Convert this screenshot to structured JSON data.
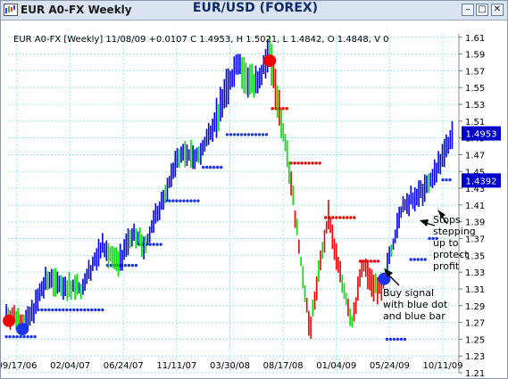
{
  "window": {
    "title": "EUR A0-FX Weekly",
    "min_glyph": "–",
    "max_glyph": "□",
    "close_glyph": "✕"
  },
  "header": {
    "title": "EUR/USD (FOREX)"
  },
  "chart_data": {
    "type": "bar",
    "style": "ohlc weekly price bars with trailing stop dots",
    "info_line": "EUR A0-FX [Weekly] 11/08/09 +0.0107 C 1.4953, H 1.5021, L 1.4842, O 1.4848, V 0",
    "y_ticks": [
      "1.61",
      "1.59",
      "1.57",
      "1.55",
      "1.53",
      "1.51",
      "1.49",
      "1.47",
      "1.45",
      "1.43",
      "1.41",
      "1.39",
      "1.37",
      "1.35",
      "1.33",
      "1.31",
      "1.29",
      "1.27",
      "1.25",
      "1.23",
      "1.21"
    ],
    "ylim": [
      1.21,
      1.614
    ],
    "x_ticks": [
      "09/17/06",
      "02/04/07",
      "06/24/07",
      "11/11/07",
      "03/30/08",
      "08/17/08",
      "01/04/09",
      "05/24/09",
      "10/11/09"
    ],
    "grid": true,
    "price_labels": [
      {
        "text": "1.4953",
        "value": 1.4953
      },
      {
        "text": "1.4392",
        "value": 1.4392
      }
    ],
    "colors": {
      "up": "#0000ee",
      "neutral": "#00dd00",
      "down": "#ee0000",
      "grid": "#99e8ee",
      "signal_sell": "#ee0000",
      "signal_buy": "#1a33ee",
      "label_box": "#0000cc"
    },
    "annotations": [
      {
        "text": "Stops stepping up to protect profit",
        "lines": [
          "Stops",
          "stepping",
          "up to",
          "protect",
          "profit"
        ]
      },
      {
        "text": "Buy signal with blue dot and blue bar",
        "lines": [
          "Buy signal",
          "with blue dot",
          "and blue bar"
        ]
      }
    ],
    "signals": [
      {
        "type": "sell",
        "date": "08/27/06",
        "price": 1.272
      },
      {
        "type": "buy",
        "date": "10/01/06",
        "price": 1.262
      },
      {
        "type": "sell",
        "date": "07/13/08",
        "price": 1.582
      },
      {
        "type": "buy",
        "date": "05/10/09",
        "price": 1.322
      }
    ],
    "stops": [
      {
        "from": "08/20/06",
        "to": "11/05/06",
        "price": 1.253,
        "side": "long"
      },
      {
        "from": "11/12/06",
        "to": "05/06/07",
        "price": 1.285,
        "side": "long"
      },
      {
        "from": "05/13/07",
        "to": "07/29/07",
        "price": 1.338,
        "side": "long"
      },
      {
        "from": "08/05/07",
        "to": "10/07/07",
        "price": 1.363,
        "side": "long"
      },
      {
        "from": "10/14/07",
        "to": "01/13/08",
        "price": 1.415,
        "side": "long"
      },
      {
        "from": "01/20/08",
        "to": "03/16/08",
        "price": 1.455,
        "side": "long"
      },
      {
        "from": "03/23/08",
        "to": "07/06/08",
        "price": 1.494,
        "side": "long"
      },
      {
        "from": "07/20/08",
        "to": "08/31/08",
        "price": 1.525,
        "side": "short"
      },
      {
        "from": "09/07/08",
        "to": "11/30/08",
        "price": 1.46,
        "side": "short"
      },
      {
        "from": "12/07/08",
        "to": "03/01/09",
        "price": 1.395,
        "side": "short"
      },
      {
        "from": "03/08/09",
        "to": "05/03/09",
        "price": 1.343,
        "side": "short"
      },
      {
        "from": "05/17/09",
        "to": "07/12/09",
        "price": 1.25,
        "side": "long"
      },
      {
        "from": "07/19/09",
        "to": "08/30/09",
        "price": 1.345,
        "side": "long"
      },
      {
        "from": "09/06/09",
        "to": "10/04/09",
        "price": 1.37,
        "side": "long"
      },
      {
        "from": "10/11/09",
        "to": "11/08/09",
        "price": 1.44,
        "side": "long"
      }
    ],
    "price_path": [
      {
        "date": "08/20/06",
        "price": 1.28
      },
      {
        "date": "10/15/06",
        "price": 1.27
      },
      {
        "date": "12/03/06",
        "price": 1.32
      },
      {
        "date": "03/04/07",
        "price": 1.31
      },
      {
        "date": "04/29/07",
        "price": 1.36
      },
      {
        "date": "06/10/07",
        "price": 1.34
      },
      {
        "date": "07/22/07",
        "price": 1.38
      },
      {
        "date": "08/19/07",
        "price": 1.36
      },
      {
        "date": "11/18/07",
        "price": 1.47
      },
      {
        "date": "01/13/08",
        "price": 1.47
      },
      {
        "date": "04/20/08",
        "price": 1.58
      },
      {
        "date": "06/01/08",
        "price": 1.55
      },
      {
        "date": "07/13/08",
        "price": 1.59
      },
      {
        "date": "08/31/08",
        "price": 1.46
      },
      {
        "date": "10/26/08",
        "price": 1.26
      },
      {
        "date": "12/14/08",
        "price": 1.4
      },
      {
        "date": "01/11/09",
        "price": 1.33
      },
      {
        "date": "02/15/09",
        "price": 1.27
      },
      {
        "date": "03/15/09",
        "price": 1.34
      },
      {
        "date": "04/12/09",
        "price": 1.31
      },
      {
        "date": "05/03/09",
        "price": 1.31
      },
      {
        "date": "06/28/09",
        "price": 1.41
      },
      {
        "date": "08/30/09",
        "price": 1.43
      },
      {
        "date": "11/08/09",
        "price": 1.4953
      }
    ]
  }
}
